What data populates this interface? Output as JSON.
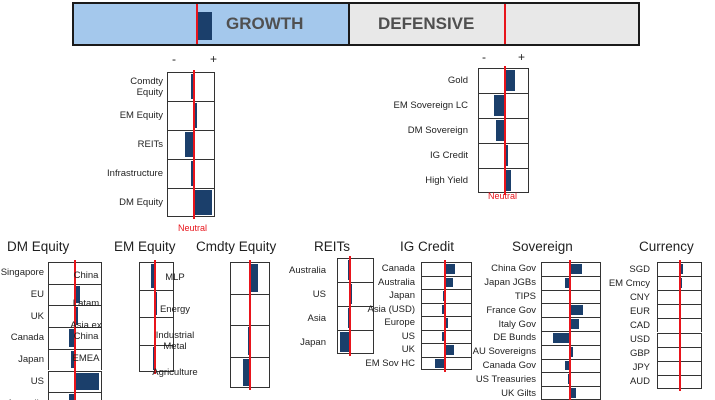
{
  "banner": {
    "growth_label": "GROWTH",
    "defensive_label": "DEFENSIVE",
    "growth_tilt": 0.7
  },
  "axis": {
    "minus": "-",
    "plus": "+",
    "neutral": "Neutral"
  },
  "colors": {
    "bar": "#1b3f6b",
    "neutral_line": "#e8141b",
    "growth_fill": "#a4c8ec",
    "defensive_fill": "#e8e8e8"
  },
  "growth_panel": {
    "rows": [
      {
        "label": "Comdty\nEquity",
        "tilt": -0.2
      },
      {
        "label": "EM Equity",
        "tilt": 0.1
      },
      {
        "label": "REITs",
        "tilt": -0.55
      },
      {
        "label": "Infrastructure",
        "tilt": -0.2
      },
      {
        "label": "DM Equity",
        "tilt": 0.95
      }
    ]
  },
  "defensive_panel": {
    "rows": [
      {
        "label": "Gold",
        "tilt": 0.5
      },
      {
        "label": "EM Sovereign LC",
        "tilt": -0.65
      },
      {
        "label": "DM Sovereign",
        "tilt": -0.55
      },
      {
        "label": "IG Credit",
        "tilt": 0.1
      },
      {
        "label": "High Yield",
        "tilt": 0.25
      }
    ]
  },
  "panels": [
    {
      "title": "DM Equity",
      "rows": [
        {
          "label": "Singapore",
          "tilt": 0
        },
        {
          "label": "EU",
          "tilt": 0.15
        },
        {
          "label": "UK",
          "tilt": 0.1
        },
        {
          "label": "Canada",
          "tilt": -0.3
        },
        {
          "label": "Japan",
          "tilt": -0.2
        },
        {
          "label": "US",
          "tilt": 0.95
        },
        {
          "label": "Australia",
          "tilt": -0.3
        }
      ]
    },
    {
      "title": "EM Equity",
      "rows": [
        {
          "label": "China",
          "tilt": -0.4
        },
        {
          "label": "Latam",
          "tilt": 0.1
        },
        {
          "label": "Asia ex\nChina",
          "tilt": -0.2
        },
        {
          "label": "EMEA",
          "tilt": -0.25
        }
      ]
    },
    {
      "title": "Cmdty Equity",
      "rows": [
        {
          "label": "MLP",
          "tilt": 0.5
        },
        {
          "label": "Energy",
          "tilt": -0.15
        },
        {
          "label": "Industrial\nMetal",
          "tilt": -0.2
        },
        {
          "label": "Agriculture",
          "tilt": -0.55
        }
      ]
    },
    {
      "title": "REITs",
      "rows": [
        {
          "label": "Australia",
          "tilt": -0.25
        },
        {
          "label": "US",
          "tilt": 0.1
        },
        {
          "label": "Asia",
          "tilt": -0.2
        },
        {
          "label": "Japan",
          "tilt": -0.8
        }
      ]
    },
    {
      "title": "IG Credit",
      "rows": [
        {
          "label": "Canada",
          "tilt": 0.5
        },
        {
          "label": "Australia",
          "tilt": 0.4
        },
        {
          "label": "Japan",
          "tilt": -0.15
        },
        {
          "label": "Asia (USD)",
          "tilt": -0.25
        },
        {
          "label": "Europe",
          "tilt": 0.1
        },
        {
          "label": "US",
          "tilt": -0.2
        },
        {
          "label": "UK",
          "tilt": 0.45
        },
        {
          "label": "EM Sov HC",
          "tilt": -0.6
        }
      ]
    },
    {
      "title": "Sovereign",
      "rows": [
        {
          "label": "China Gov",
          "tilt": 0.55
        },
        {
          "label": "Japan JGBs",
          "tilt": -0.3
        },
        {
          "label": "TIPS",
          "tilt": 0
        },
        {
          "label": "France Gov",
          "tilt": 0.6
        },
        {
          "label": "Italy Gov",
          "tilt": 0.4
        },
        {
          "label": "DE Bunds",
          "tilt": -0.9
        },
        {
          "label": "AU Sovereigns",
          "tilt": 0.1
        },
        {
          "label": "Canada Gov",
          "tilt": -0.3
        },
        {
          "label": "US Treasuries",
          "tilt": -0.15
        },
        {
          "label": "UK Gilts",
          "tilt": 0.25
        }
      ]
    },
    {
      "title": "Currency",
      "rows": [
        {
          "label": "SGD",
          "tilt": 0.15
        },
        {
          "label": "EM Cmcy",
          "tilt": 0.05
        },
        {
          "label": "CNY",
          "tilt": 0
        },
        {
          "label": "EUR",
          "tilt": -0.15
        },
        {
          "label": "CAD",
          "tilt": 0
        },
        {
          "label": "USD",
          "tilt": 0
        },
        {
          "label": "GBP",
          "tilt": 0
        },
        {
          "label": "JPY",
          "tilt": 0
        },
        {
          "label": "AUD",
          "tilt": 0
        }
      ]
    }
  ]
}
